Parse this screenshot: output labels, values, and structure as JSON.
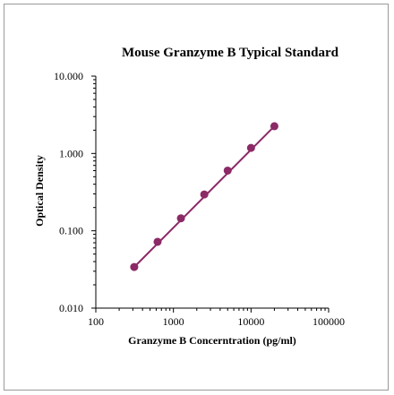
{
  "chart_data": {
    "type": "scatter",
    "title": "Mouse Granzyme B Typical Standard",
    "xlabel": "Granzyme B Concerntration (pg/ml)",
    "ylabel": "Optical Density",
    "x_scale": "log",
    "y_scale": "log",
    "xlim": [
      100,
      100000
    ],
    "ylim": [
      0.01,
      10
    ],
    "x_ticks": [
      "100",
      "1000",
      "10000",
      "100000"
    ],
    "y_ticks": [
      "0.010",
      "0.100",
      "1.000",
      "10.000"
    ],
    "grid": false,
    "legend": "none",
    "series": [
      {
        "x": [
          312.5,
          625,
          1250,
          2500,
          5000,
          10000,
          20000
        ],
        "y": [
          0.034,
          0.072,
          0.145,
          0.295,
          0.6,
          1.18,
          2.25
        ]
      }
    ],
    "fit_line": {
      "x": [
        312.5,
        20000
      ],
      "y": [
        0.034,
        2.25
      ]
    },
    "colors": {
      "marker": "#8b2a66",
      "line": "#8b2a66",
      "axis": "#000000"
    }
  }
}
